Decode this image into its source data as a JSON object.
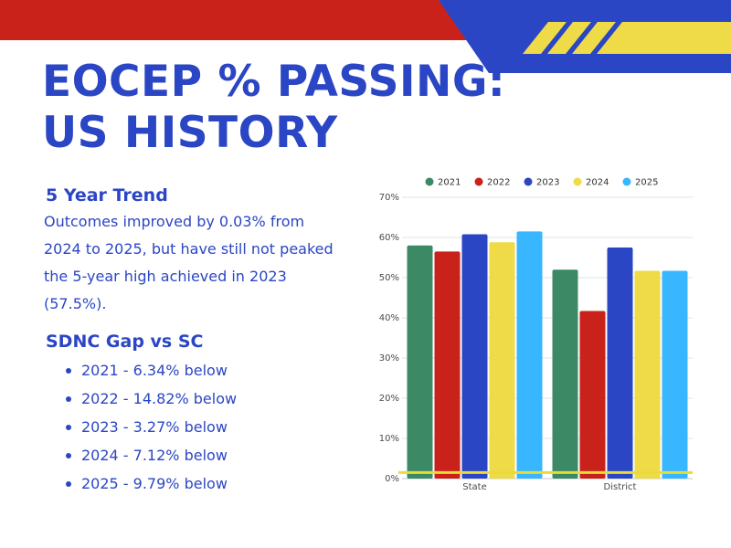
{
  "header": {
    "title_line1": "EOCEP % PASSING:",
    "title_line2": "US HISTORY"
  },
  "trend": {
    "heading": "5 Year Trend",
    "body": "Outcomes improved by 0.03% from 2024 to 2025, but have still not peaked the 5-year high achieved in 2023 (57.5%)."
  },
  "gap": {
    "heading": "SDNC Gap vs SC",
    "items": [
      "2021 - 6.34% below",
      "2022 - 14.82% below",
      "2023 - 3.27% below",
      "2024 - 7.12% below",
      "2025 - 9.79% below"
    ]
  },
  "colors": {
    "red": "#c8221a",
    "blue": "#2b46c4",
    "yellow": "#eedb47",
    "threshold_line": "#e8dc38"
  },
  "chart_data": {
    "type": "bar",
    "categories": [
      "State",
      "District"
    ],
    "series": [
      {
        "name": "2021",
        "color": "#3b8a65",
        "values": [
          58,
          52
        ]
      },
      {
        "name": "2022",
        "color": "#c8221a",
        "values": [
          56.5,
          41.7
        ]
      },
      {
        "name": "2023",
        "color": "#2b46c4",
        "values": [
          60.8,
          57.5
        ]
      },
      {
        "name": "2024",
        "color": "#eedb47",
        "values": [
          58.8,
          51.7
        ]
      },
      {
        "name": "2025",
        "color": "#38b6ff",
        "values": [
          61.5,
          51.7
        ]
      }
    ],
    "ylim": [
      0,
      70
    ],
    "yticks": [
      "0%",
      "10%",
      "20%",
      "30%",
      "40%",
      "50%",
      "60%",
      "70%"
    ],
    "threshold_value": 1.5,
    "legend_position": "top",
    "grid": true
  }
}
